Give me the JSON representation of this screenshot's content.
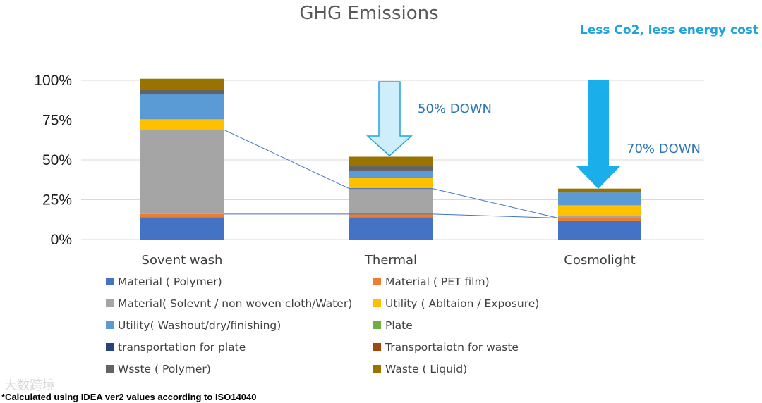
{
  "chart_data": {
    "type": "bar",
    "stacked": true,
    "title": "GHG Emissions",
    "categories": [
      "Sovent wash",
      "Thermal",
      "Cosmolight"
    ],
    "y_ticks": [
      "0%",
      "25%",
      "50%",
      "75%",
      "100%"
    ],
    "ylim": [
      0,
      100
    ],
    "grid": true,
    "legend_position": "bottom",
    "series": [
      {
        "name": "Material ( Polymer)",
        "color": "#4472c4",
        "values": [
          14,
          14,
          11.5
        ]
      },
      {
        "name": "Material ( PET film)",
        "color": "#ed7d31",
        "values": [
          2,
          2,
          2
        ]
      },
      {
        "name": "Material( Solevnt / non woven cloth/Water)",
        "color": "#a5a5a5",
        "values": [
          53,
          16,
          1.5
        ]
      },
      {
        "name": "Utility ( Abltaion / Exposure)",
        "color": "#ffc000",
        "values": [
          6.5,
          6.5,
          6.5
        ]
      },
      {
        "name": "Utility( Washout/dry/finishing)",
        "color": "#5b9bd5",
        "values": [
          16,
          4.5,
          8
        ]
      },
      {
        "name": "Plate",
        "color": "#70ad47",
        "values": [
          0,
          0,
          0
        ]
      },
      {
        "name": "transportation for plate",
        "color": "#264478",
        "values": [
          0,
          0,
          0
        ]
      },
      {
        "name": "Transportaiotn for waste",
        "color": "#9e480e",
        "values": [
          0,
          0,
          0
        ]
      },
      {
        "name": "Wsste ( Polymer)",
        "color": "#636363",
        "values": [
          2.5,
          3,
          0.5
        ]
      },
      {
        "name": "Waste ( Liquid)",
        "color": "#997300",
        "values": [
          7,
          6,
          2
        ]
      }
    ],
    "annotations": {
      "thermal_reduction": "50% DOWN",
      "cosmolight_reduction": "70% DOWN",
      "tagline": "Less Co2, less energy cost"
    },
    "footnote": "*Calculated using IDEA ver2 values according to ISO14040",
    "watermark": "大数跨境"
  },
  "colors": {
    "thermal_arrow_fill": "#cdeefa",
    "thermal_arrow_stroke": "#1fa3dc",
    "cosmolight_arrow_fill": "#1aaeea",
    "connector_line": "#4472c4",
    "gridline": "#d9d9d9"
  }
}
